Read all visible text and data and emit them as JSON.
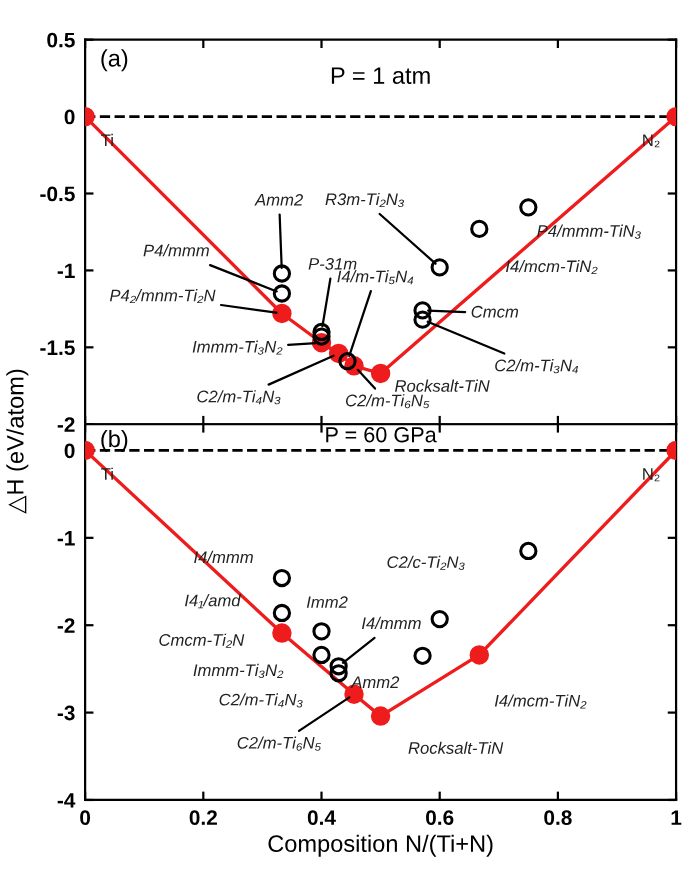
{
  "chart_data": [
    {
      "type": "line",
      "title": "P = 1 atm",
      "ylabel": "△H (eV/atom)",
      "marker": "circle",
      "tick_labels": "y",
      "xlim": [
        0,
        1
      ],
      "xticks": [
        0,
        0.2,
        0.4,
        0.6,
        0.8,
        1
      ],
      "ylim": [
        -2,
        0.5
      ],
      "yticks": [
        -2,
        -1.5,
        -1,
        -0.5,
        0,
        0.5
      ],
      "ref_lines": [
        {
          "axis": "y",
          "value": 0,
          "color": "#000000",
          "line_style": "dashed"
        }
      ],
      "series": [
        {
          "color": "#ee1c1c",
          "x": [
            0,
            0.333,
            0.4,
            0.429,
            0.455,
            0.5,
            1
          ],
          "values": [
            0,
            -1.28,
            -1.47,
            -1.54,
            -1.62,
            -1.67,
            0
          ]
        },
        {
          "type": "scatter",
          "color": "#000000",
          "x": [
            0.333,
            0.333,
            0.4,
            0.4,
            0.444,
            0.571,
            0.571,
            0.6,
            0.667,
            0.75
          ],
          "values": [
            -1.02,
            -1.15,
            -1.4,
            -1.43,
            -1.59,
            -1.26,
            -1.32,
            -0.98,
            -0.73,
            -0.59
          ]
        }
      ],
      "annotations": [
        {
          "text": "Amm2",
          "x": 0.333,
          "y": -1.02
        },
        {
          "text": "P4/mmm",
          "x": 0.333,
          "y": -1.15
        },
        {
          "text": "P4₂/mnm-Ti₂N",
          "x": 0.333,
          "y": -1.28
        },
        {
          "text": "P-31m",
          "x": 0.4,
          "y": -1.4
        },
        {
          "text": "I4/m-Ti₅N₄",
          "x": 0.444,
          "y": -1.59
        },
        {
          "text": "Immm-Ti₃N₂",
          "x": 0.4,
          "y": -1.47
        },
        {
          "text": "C2/m-Ti₄N₃",
          "x": 0.429,
          "y": -1.54
        },
        {
          "text": "C2/m-Ti₆N₅",
          "x": 0.455,
          "y": -1.62
        },
        {
          "text": "Rocksalt-TiN",
          "x": 0.5,
          "y": -1.67
        },
        {
          "text": "R3m-Ti₂N₃",
          "x": 0.6,
          "y": -0.98
        },
        {
          "text": "I4/mcm-TiN₂",
          "x": 0.667,
          "y": -0.73
        },
        {
          "text": "P4/mmm-TiN₃",
          "x": 0.75,
          "y": -0.59
        },
        {
          "text": "Cmcm",
          "x": 0.571,
          "y": -1.26
        },
        {
          "text": "C2/m-Ti₃N₄",
          "x": 0.571,
          "y": -1.32
        },
        {
          "text": "Ti",
          "x": 0,
          "y": 0
        },
        {
          "text": "N₂",
          "x": 1,
          "y": 0
        },
        "(a)"
      ]
    },
    {
      "type": "line",
      "title": "P = 60 GPa",
      "xlabel": "Composition N/(Ti+N)",
      "marker": "circle",
      "xlim": [
        0,
        1
      ],
      "xticks": [
        0,
        0.2,
        0.4,
        0.6,
        0.8,
        1
      ],
      "ylim": [
        -4,
        0.3
      ],
      "yticks": [
        -4,
        -3,
        -2,
        -1,
        0
      ],
      "ref_lines": [
        {
          "axis": "y",
          "value": 0,
          "color": "#000000",
          "line_style": "dashed"
        }
      ],
      "series": [
        {
          "color": "#ee1c1c",
          "x": [
            0,
            0.333,
            0.455,
            0.5,
            0.667,
            1
          ],
          "values": [
            0,
            -2.09,
            -2.79,
            -3.04,
            -2.34,
            0
          ]
        },
        {
          "type": "scatter",
          "color": "#000000",
          "x": [
            0.333,
            0.333,
            0.4,
            0.4,
            0.429,
            0.429,
            0.571,
            0.6,
            0.75
          ],
          "values": [
            -1.46,
            -1.86,
            -2.07,
            -2.34,
            -2.47,
            -2.55,
            -2.35,
            -1.93,
            -1.15
          ]
        }
      ],
      "annotations": [
        {
          "text": "I4/mmm",
          "x": 0.333,
          "y": -1.46
        },
        {
          "text": "I4₁/amd",
          "x": 0.333,
          "y": -1.86
        },
        {
          "text": "Cmcm-Ti₂N",
          "x": 0.333,
          "y": -2.09
        },
        {
          "text": "Imm2",
          "x": 0.4,
          "y": -2.07
        },
        {
          "text": "I4/mmm",
          "x": 0.429,
          "y": -2.47
        },
        {
          "text": "Immm-Ti₃N₂",
          "x": 0.4,
          "y": -2.34
        },
        {
          "text": "Amm2",
          "x": 0.571,
          "y": -2.35
        },
        {
          "text": "C2/m-Ti₄N₃",
          "x": 0.429,
          "y": -2.55
        },
        {
          "text": "C2/c-Ti₂N₃",
          "x": 0.6,
          "y": -1.93
        },
        {
          "text": "C2/m-Ti₆N₅",
          "x": 0.455,
          "y": -2.79
        },
        {
          "text": "Rocksalt-TiN",
          "x": 0.5,
          "y": -3.04
        },
        {
          "text": "I4/mcm-TiN₂",
          "x": 0.667,
          "y": -2.34
        },
        {
          "text": "Ti",
          "x": 0,
          "y": 0
        },
        {
          "text": "N₂",
          "x": 1,
          "y": 0
        },
        "(b)"
      ]
    }
  ]
}
